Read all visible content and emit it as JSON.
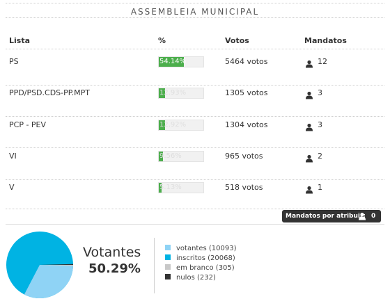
{
  "title": "ASSEMBLEIA MUNICIPAL",
  "columns": {
    "lista": "Lista",
    "pct": "%",
    "votos": "Votos",
    "mandatos": "Mandatos"
  },
  "rows": [
    {
      "lista": "PS",
      "pct": 54.14,
      "pct_label": "54.14%",
      "votos": "5464 votos",
      "mandatos": "12"
    },
    {
      "lista": "PPD/PSD.CDS-PP.MPT",
      "pct": 12.93,
      "pct_label": "12.93%",
      "votos": "1305 votos",
      "mandatos": "3"
    },
    {
      "lista": "PCP - PEV",
      "pct": 12.92,
      "pct_label": "12.92%",
      "votos": "1304 votos",
      "mandatos": "3"
    },
    {
      "lista": "VI",
      "pct": 9.56,
      "pct_label": "9.56%",
      "votos": "965 votos",
      "mandatos": "2"
    },
    {
      "lista": "V",
      "pct": 5.13,
      "pct_label": "5.13%",
      "votos": "518 votos",
      "mandatos": "1"
    }
  ],
  "pending": {
    "label": "Mandatos por atribuir:",
    "count": "0"
  },
  "summary": {
    "label": "Votantes",
    "pct": "50.29%"
  },
  "legend": [
    {
      "label": "votantes (10093)",
      "color": "#8fd3f5"
    },
    {
      "label": "inscritos (20068)",
      "color": "#00b3e3"
    },
    {
      "label": "em branco (305)",
      "color": "#c8c8c8"
    },
    {
      "label": "nulos (232)",
      "color": "#333333"
    }
  ],
  "colors": {
    "bar": "#4cae4c",
    "bar_bg": "#f1f1f1"
  }
}
